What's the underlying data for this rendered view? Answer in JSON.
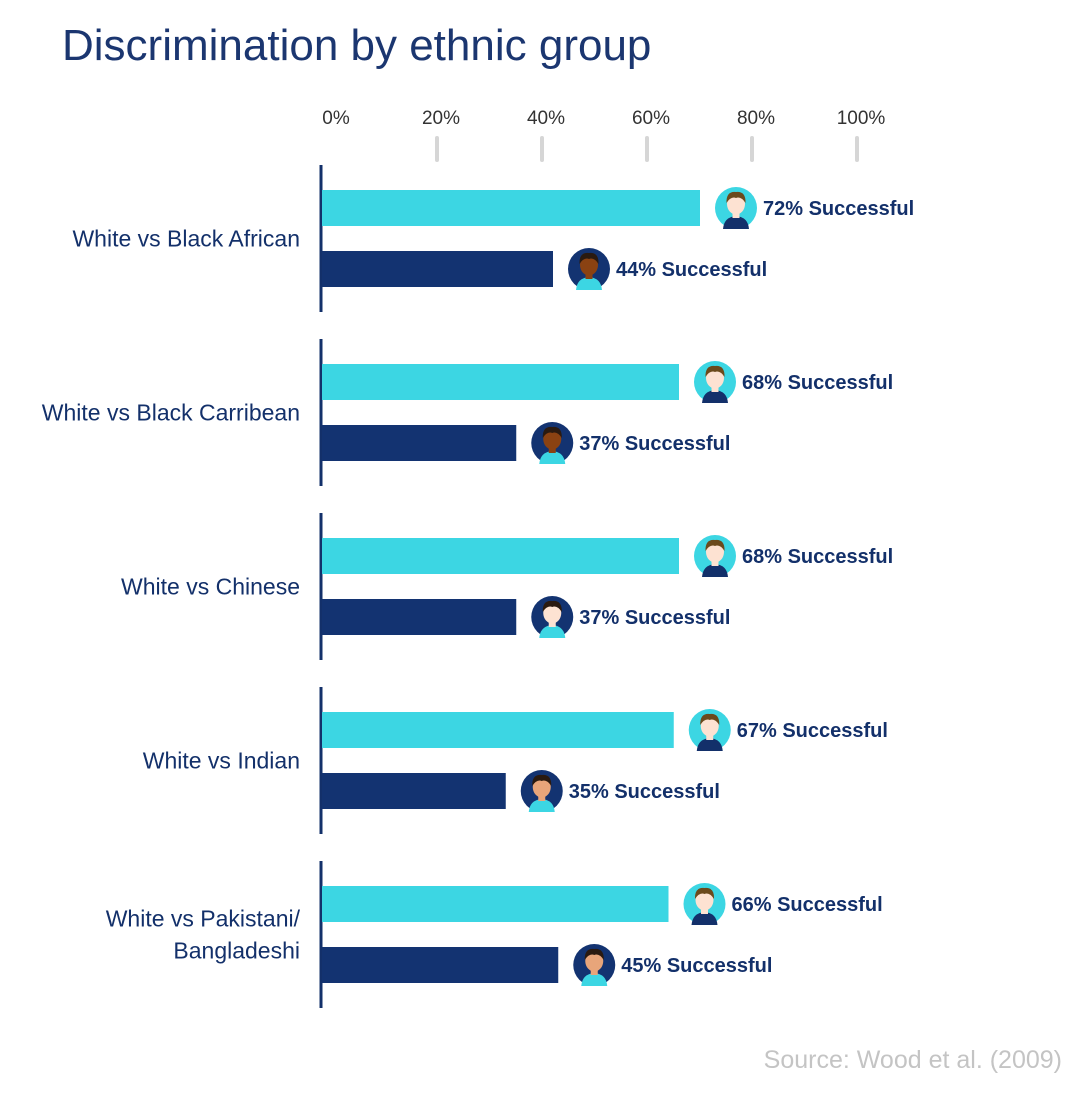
{
  "title": "Discrimination by ethnic group",
  "source": "Source: Wood et al. (2009)",
  "colors": {
    "title": "#1b3670",
    "text": "#13306a",
    "white_bar": "#3cd6e3",
    "minority_bar": "#133371",
    "axis": "#13306a",
    "tick": "#d6d6d6",
    "tick_label": "#333333",
    "source": "#c4c4c4",
    "skin_light": "#fde2d2",
    "skin_dark": "#8a4212",
    "skin_medium": "#e8a57a",
    "hair_brown": "#6b4a1c",
    "hair_black": "#2a1a10",
    "shirt_white_group": "#13306a",
    "shirt_minority_group": "#3cd6e3"
  },
  "chart_data": {
    "type": "bar",
    "orientation": "horizontal",
    "xlim": [
      0,
      100
    ],
    "x_ticks": [
      "0%",
      "20%",
      "40%",
      "60%",
      "80%",
      "100%"
    ],
    "tick_values": [
      0,
      20,
      40,
      60,
      80,
      100
    ],
    "grid": false,
    "value_suffix": "% Successful",
    "groups": [
      {
        "label_lines": [
          "White vs Black African"
        ],
        "bars": [
          {
            "value": 72,
            "label": "72% Successful",
            "kind": "white",
            "avatar": "light"
          },
          {
            "value": 44,
            "label": "44% Successful",
            "kind": "minority",
            "avatar": "dark"
          }
        ]
      },
      {
        "label_lines": [
          "White vs Black Carribean"
        ],
        "bars": [
          {
            "value": 68,
            "label": "68% Successful",
            "kind": "white",
            "avatar": "light"
          },
          {
            "value": 37,
            "label": "37% Successful",
            "kind": "minority",
            "avatar": "dark"
          }
        ]
      },
      {
        "label_lines": [
          "White vs Chinese"
        ],
        "bars": [
          {
            "value": 68,
            "label": "68% Successful",
            "kind": "white",
            "avatar": "light"
          },
          {
            "value": 37,
            "label": "37% Successful",
            "kind": "minority",
            "avatar": "east-asian"
          }
        ]
      },
      {
        "label_lines": [
          "White vs Indian"
        ],
        "bars": [
          {
            "value": 67,
            "label": "67% Successful",
            "kind": "white",
            "avatar": "light"
          },
          {
            "value": 35,
            "label": "35% Successful",
            "kind": "minority",
            "avatar": "medium"
          }
        ]
      },
      {
        "label_lines": [
          "White vs Pakistani/",
          "Bangladeshi"
        ],
        "bars": [
          {
            "value": 66,
            "label": "66% Successful",
            "kind": "white",
            "avatar": "light"
          },
          {
            "value": 45,
            "label": "45% Successful",
            "kind": "minority",
            "avatar": "medium"
          }
        ]
      }
    ]
  }
}
